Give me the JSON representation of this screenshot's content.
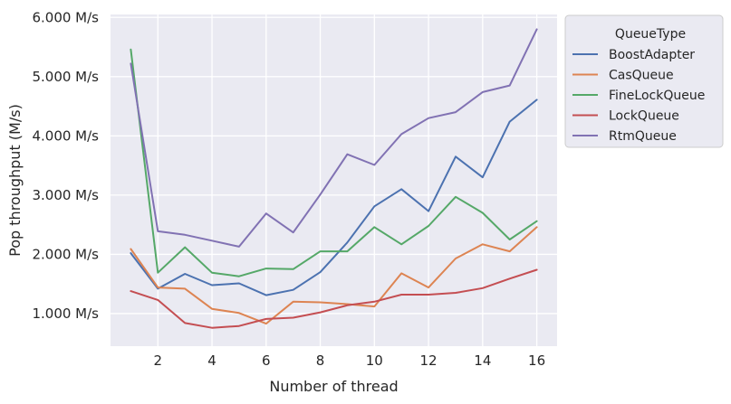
{
  "chart_data": {
    "type": "line",
    "xlabel": "Number of thread",
    "ylabel": "Pop throughput (M/s)",
    "x": [
      1,
      2,
      3,
      4,
      5,
      6,
      7,
      8,
      9,
      10,
      11,
      12,
      13,
      14,
      15,
      16
    ],
    "xticks": [
      2,
      4,
      6,
      8,
      10,
      12,
      14,
      16
    ],
    "xtick_labels": [
      "2",
      "4",
      "6",
      "8",
      "10",
      "12",
      "14",
      "16"
    ],
    "xlim": [
      0.25,
      16.75
    ],
    "yticks": [
      1.0,
      2.0,
      3.0,
      4.0,
      5.0,
      6.0
    ],
    "ytick_labels": [
      "1.000 M/s",
      "2.000 M/s",
      "3.000 M/s",
      "4.000 M/s",
      "5.000 M/s",
      "6.000 M/s"
    ],
    "ylim": [
      0.45,
      6.05
    ],
    "grid": true,
    "legend": {
      "title": "QueueType",
      "placement": "outside-top-right"
    },
    "series": [
      {
        "name": "BoostAdapter",
        "color": "#4c72b0",
        "values": [
          2.02,
          1.42,
          1.67,
          1.48,
          1.51,
          1.31,
          1.4,
          1.7,
          2.2,
          2.81,
          3.1,
          2.73,
          3.65,
          3.3,
          4.24,
          4.61
        ]
      },
      {
        "name": "CasQueue",
        "color": "#dd8452",
        "values": [
          2.09,
          1.44,
          1.42,
          1.08,
          1.01,
          0.83,
          1.2,
          1.19,
          1.16,
          1.12,
          1.68,
          1.44,
          1.93,
          2.17,
          2.05,
          2.46
        ]
      },
      {
        "name": "FineLockQueue",
        "color": "#55a868",
        "values": [
          5.46,
          1.69,
          2.12,
          1.69,
          1.63,
          1.76,
          1.75,
          2.05,
          2.05,
          2.46,
          2.17,
          2.48,
          2.97,
          2.7,
          2.25,
          2.56
        ]
      },
      {
        "name": "LockQueue",
        "color": "#c44e52",
        "values": [
          1.38,
          1.23,
          0.84,
          0.76,
          0.79,
          0.91,
          0.93,
          1.02,
          1.14,
          1.2,
          1.32,
          1.32,
          1.35,
          1.43,
          1.59,
          1.74
        ]
      },
      {
        "name": "RtmQueue",
        "color": "#8172b3",
        "values": [
          5.22,
          2.39,
          2.33,
          2.23,
          2.13,
          2.69,
          2.37,
          3.01,
          3.69,
          3.51,
          4.03,
          4.3,
          4.4,
          4.74,
          4.85,
          5.8
        ]
      }
    ]
  }
}
